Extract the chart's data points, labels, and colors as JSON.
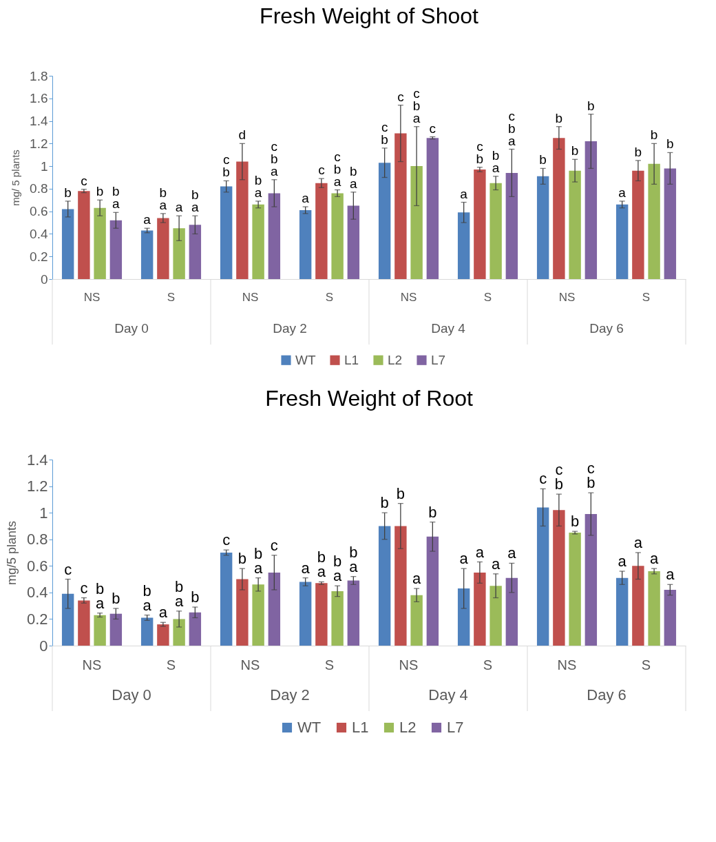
{
  "chart_data": [
    {
      "type": "bar",
      "title": "Fresh Weight of Shoot",
      "ylabel": "mg/ 5 plants",
      "categories": [
        "NS",
        "S",
        "NS",
        "S",
        "NS",
        "S",
        "NS",
        "S"
      ],
      "annotations": [
        "Day 0",
        "Day 2",
        "Day 4",
        "Day 6"
      ],
      "ylim": [
        0,
        1.8
      ],
      "yticks": [
        0,
        0.2,
        0.4,
        0.6,
        0.8,
        1,
        1.2,
        1.4,
        1.6,
        1.8
      ],
      "legend": "bottom",
      "series": [
        {
          "name": "WT",
          "color": "#4f81bd",
          "values": [
            0.62,
            0.43,
            0.82,
            0.61,
            1.03,
            0.59,
            0.91,
            0.66
          ],
          "errors": [
            0.07,
            0.02,
            0.05,
            0.03,
            0.13,
            0.09,
            0.07,
            0.03
          ],
          "value_labels": [
            "b",
            "a",
            "c\nb",
            "a",
            "c\nb",
            "a",
            "b",
            "a"
          ]
        },
        {
          "name": "L1",
          "color": "#c0504d",
          "values": [
            0.78,
            0.54,
            1.04,
            0.85,
            1.29,
            0.97,
            1.25,
            0.96
          ],
          "errors": [
            0.015,
            0.04,
            0.16,
            0.04,
            0.25,
            0.02,
            0.1,
            0.09
          ],
          "value_labels": [
            "c",
            "b\na",
            "d",
            "c",
            "c",
            "c\nb",
            "b",
            "b"
          ]
        },
        {
          "name": "L2",
          "color": "#9bbb59",
          "values": [
            0.63,
            0.45,
            0.66,
            0.76,
            1.0,
            0.85,
            0.96,
            1.02
          ],
          "errors": [
            0.07,
            0.11,
            0.03,
            0.03,
            0.35,
            0.06,
            0.1,
            0.18
          ],
          "value_labels": [
            "b",
            "a",
            "b\na",
            "c\nb\na",
            "c\nb\na",
            "b\na",
            "b",
            "b"
          ]
        },
        {
          "name": "L7",
          "color": "#8064a2",
          "values": [
            0.52,
            0.48,
            0.76,
            0.65,
            1.25,
            0.94,
            1.22,
            0.98
          ],
          "errors": [
            0.07,
            0.08,
            0.12,
            0.12,
            0.01,
            0.21,
            0.24,
            0.14
          ],
          "value_labels": [
            "b\na",
            "b\na",
            "c\nb\na",
            "b\na",
            "c",
            "c\nb\na",
            "b",
            "b"
          ]
        }
      ]
    },
    {
      "type": "bar",
      "title": "Fresh Weight of Root",
      "ylabel": "mg/5 plants",
      "categories": [
        "NS",
        "S",
        "NS",
        "S",
        "NS",
        "S",
        "NS",
        "S"
      ],
      "annotations": [
        "Day 0",
        "Day 2",
        "Day 4",
        "Day 6"
      ],
      "ylim": [
        0,
        1.4
      ],
      "yticks": [
        0,
        0.2,
        0.4,
        0.6,
        0.8,
        1,
        1.2,
        1.4
      ],
      "legend": "bottom",
      "series": [
        {
          "name": "WT",
          "color": "#4f81bd",
          "values": [
            0.39,
            0.21,
            0.7,
            0.48,
            0.9,
            0.43,
            1.04,
            0.51
          ],
          "errors": [
            0.11,
            0.02,
            0.02,
            0.03,
            0.1,
            0.15,
            0.14,
            0.05
          ],
          "value_labels": [
            "c",
            "b\na",
            "c",
            "a",
            "b",
            "a",
            "c",
            "a"
          ]
        },
        {
          "name": "L1",
          "color": "#c0504d",
          "values": [
            0.34,
            0.16,
            0.5,
            0.47,
            0.9,
            0.55,
            1.02,
            0.6
          ],
          "errors": [
            0.02,
            0.015,
            0.08,
            0.01,
            0.17,
            0.08,
            0.12,
            0.1
          ],
          "value_labels": [
            "c",
            "a",
            "b",
            "b\na",
            "b",
            "a",
            "c\nb",
            "a"
          ]
        },
        {
          "name": "L2",
          "color": "#9bbb59",
          "values": [
            0.23,
            0.2,
            0.46,
            0.41,
            0.38,
            0.45,
            0.85,
            0.56
          ],
          "errors": [
            0.015,
            0.06,
            0.05,
            0.04,
            0.05,
            0.09,
            0.01,
            0.02
          ],
          "value_labels": [
            "b\na",
            "b\na",
            "b\na",
            "b\na",
            "a",
            "a",
            "b",
            "a"
          ]
        },
        {
          "name": "L7",
          "color": "#8064a2",
          "values": [
            0.24,
            0.25,
            0.55,
            0.49,
            0.82,
            0.51,
            0.99,
            0.42
          ],
          "errors": [
            0.04,
            0.04,
            0.13,
            0.03,
            0.11,
            0.11,
            0.16,
            0.04
          ],
          "value_labels": [
            "b",
            "b",
            "c",
            "b\na",
            "b",
            "a",
            "c\nb",
            "a"
          ]
        }
      ]
    }
  ]
}
